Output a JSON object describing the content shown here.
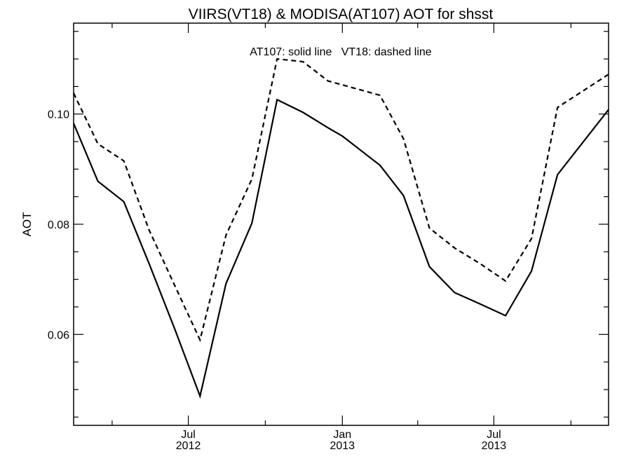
{
  "chart_data": {
    "type": "line",
    "title": "VIIRS(VT18) & MODISA(AT107)  AOT for shsst",
    "xlabel": "",
    "ylabel": "AOT",
    "annotation": "AT107: solid line   VT18: dashed line",
    "x_ticks": [
      {
        "month": "Jul",
        "year": "2012",
        "date": "2012-07-01"
      },
      {
        "month": "Jan",
        "year": "2013",
        "date": "2013-01-01"
      },
      {
        "month": "Jul",
        "year": "2013",
        "date": "2013-07-01"
      }
    ],
    "xlim": [
      "2012-02-15",
      "2013-11-15"
    ],
    "ylim": [
      0.0435,
      0.1165
    ],
    "y_ticks": [
      0.06,
      0.08,
      0.1
    ],
    "y_tick_labels": [
      "0.06",
      "0.08",
      "0.10"
    ],
    "y_minor_step": 0.005,
    "x_minor_ticks": [
      "2012-04-01",
      "2012-10-01",
      "2013-04-01",
      "2013-10-01"
    ],
    "grid": false,
    "series": [
      {
        "style": "solid",
        "points": [
          {
            "x": "2012-02-15",
            "y": 0.0983
          },
          {
            "x": "2012-03-15",
            "y": 0.0878
          },
          {
            "x": "2012-04-15",
            "y": 0.0841
          },
          {
            "x": "2012-05-15",
            "y": 0.0729
          },
          {
            "x": "2012-06-15",
            "y": 0.0609
          },
          {
            "x": "2012-07-15",
            "y": 0.0488
          },
          {
            "x": "2012-08-15",
            "y": 0.0692
          },
          {
            "x": "2012-09-15",
            "y": 0.0802
          },
          {
            "x": "2012-10-15",
            "y": 0.1026
          },
          {
            "x": "2012-11-15",
            "y": 0.1003
          },
          {
            "x": "2012-12-15",
            "y": 0.0975
          },
          {
            "x": "2013-01-01",
            "y": 0.096
          },
          {
            "x": "2013-02-15",
            "y": 0.0907
          },
          {
            "x": "2013-03-15",
            "y": 0.0852
          },
          {
            "x": "2013-04-15",
            "y": 0.0723
          },
          {
            "x": "2013-05-15",
            "y": 0.0676
          },
          {
            "x": "2013-06-15",
            "y": 0.0655
          },
          {
            "x": "2013-07-15",
            "y": 0.0634
          },
          {
            "x": "2013-08-15",
            "y": 0.0715
          },
          {
            "x": "2013-09-15",
            "y": 0.089
          },
          {
            "x": "2013-11-15",
            "y": 0.1008
          }
        ]
      },
      {
        "style": "dashed",
        "points": [
          {
            "x": "2012-02-15",
            "y": 0.1038
          },
          {
            "x": "2012-03-15",
            "y": 0.0946
          },
          {
            "x": "2012-04-15",
            "y": 0.0915
          },
          {
            "x": "2012-05-15",
            "y": 0.079
          },
          {
            "x": "2012-06-15",
            "y": 0.0688
          },
          {
            "x": "2012-07-15",
            "y": 0.059
          },
          {
            "x": "2012-08-15",
            "y": 0.078
          },
          {
            "x": "2012-09-15",
            "y": 0.0882
          },
          {
            "x": "2012-10-15",
            "y": 0.11
          },
          {
            "x": "2012-11-15",
            "y": 0.1095
          },
          {
            "x": "2012-12-15",
            "y": 0.106
          },
          {
            "x": "2013-01-01",
            "y": 0.1053
          },
          {
            "x": "2013-02-15",
            "y": 0.1034
          },
          {
            "x": "2013-03-15",
            "y": 0.0955
          },
          {
            "x": "2013-04-15",
            "y": 0.0793
          },
          {
            "x": "2013-05-15",
            "y": 0.0757
          },
          {
            "x": "2013-06-15",
            "y": 0.0728
          },
          {
            "x": "2013-07-15",
            "y": 0.0697
          },
          {
            "x": "2013-08-15",
            "y": 0.0774
          },
          {
            "x": "2013-09-15",
            "y": 0.1012
          },
          {
            "x": "2013-11-15",
            "y": 0.1072
          }
        ]
      }
    ]
  }
}
